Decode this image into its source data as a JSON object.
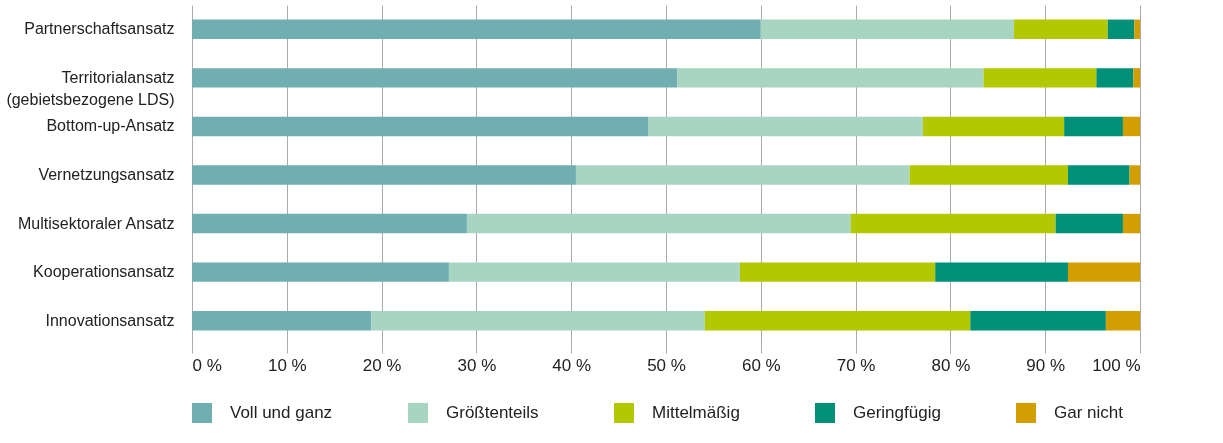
{
  "chart_data": {
    "type": "bar",
    "orientation": "horizontal",
    "stacked": true,
    "categories": [
      "Partnerschaftsansatz",
      "Territorialansatz\n(gebietsbezogene LDS)",
      "Bottom-up-Ansatz",
      "Vernetzungsansatz",
      "Multisektoraler Ansatz",
      "Kooperationsansatz",
      "Innovationsansatz"
    ],
    "series": [
      {
        "name": "Voll und ganz",
        "color": "#70aeb1",
        "values": [
          60.0,
          51.2,
          48.1,
          40.5,
          29.0,
          27.1,
          18.9
        ]
      },
      {
        "name": "Größtenteils",
        "color": "#a8d5c1",
        "values": [
          26.7,
          32.3,
          29.0,
          35.2,
          40.5,
          30.7,
          35.2
        ]
      },
      {
        "name": "Mittelmäßig",
        "color": "#b2c800",
        "values": [
          9.9,
          11.9,
          14.9,
          16.7,
          21.6,
          20.6,
          28.0
        ]
      },
      {
        "name": "Geringfügig",
        "color": "#008f77",
        "values": [
          2.8,
          3.9,
          6.2,
          6.5,
          7.1,
          14.0,
          14.3
        ]
      },
      {
        "name": "Gar nicht",
        "color": "#d39e00",
        "values": [
          0.6,
          0.7,
          1.8,
          1.1,
          1.8,
          7.6,
          3.6
        ]
      }
    ],
    "xlim": [
      0,
      100
    ],
    "xticks": [
      {
        "value": 0,
        "label": "0 %"
      },
      {
        "value": 10,
        "label": "10 %"
      },
      {
        "value": 20,
        "label": "20 %"
      },
      {
        "value": 30,
        "label": "30 %"
      },
      {
        "value": 40,
        "label": "40 %"
      },
      {
        "value": 50,
        "label": "50 %"
      },
      {
        "value": 60,
        "label": "60 %"
      },
      {
        "value": 70,
        "label": "70 %"
      },
      {
        "value": 80,
        "label": "80 %"
      },
      {
        "value": 90,
        "label": "90 %"
      },
      {
        "value": 100,
        "label": "100 %"
      }
    ],
    "grid": "x",
    "legend": "bottom"
  }
}
